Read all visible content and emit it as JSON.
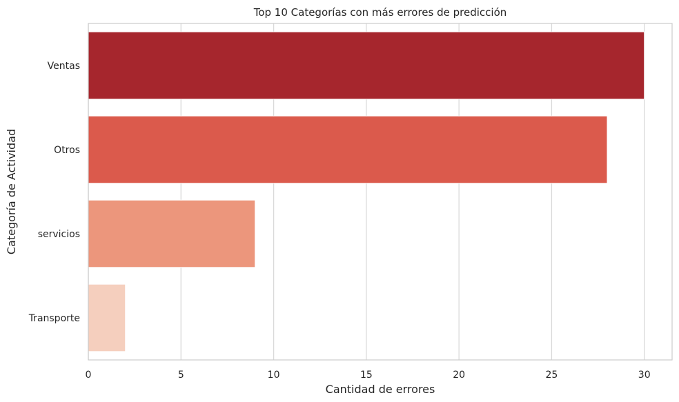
{
  "chart_data": {
    "type": "bar",
    "orientation": "horizontal",
    "title": "Top 10 Categorías con más errores de predicción",
    "xlabel": "Cantidad de errores",
    "ylabel": "Categoría de Actividad",
    "categories": [
      "Ventas",
      "Otros",
      "servicios",
      "Transporte"
    ],
    "values": [
      30,
      28,
      9,
      2
    ],
    "colors": [
      "#a6262d",
      "#db5a4c",
      "#ec967c",
      "#f5cfbe"
    ],
    "xlim": [
      0,
      31.5
    ],
    "xticks": [
      0,
      5,
      10,
      15,
      20,
      25,
      30
    ],
    "grid": "vertical",
    "grid_color": "#d9d9d9",
    "axes_edge_color": "#cccccc"
  }
}
